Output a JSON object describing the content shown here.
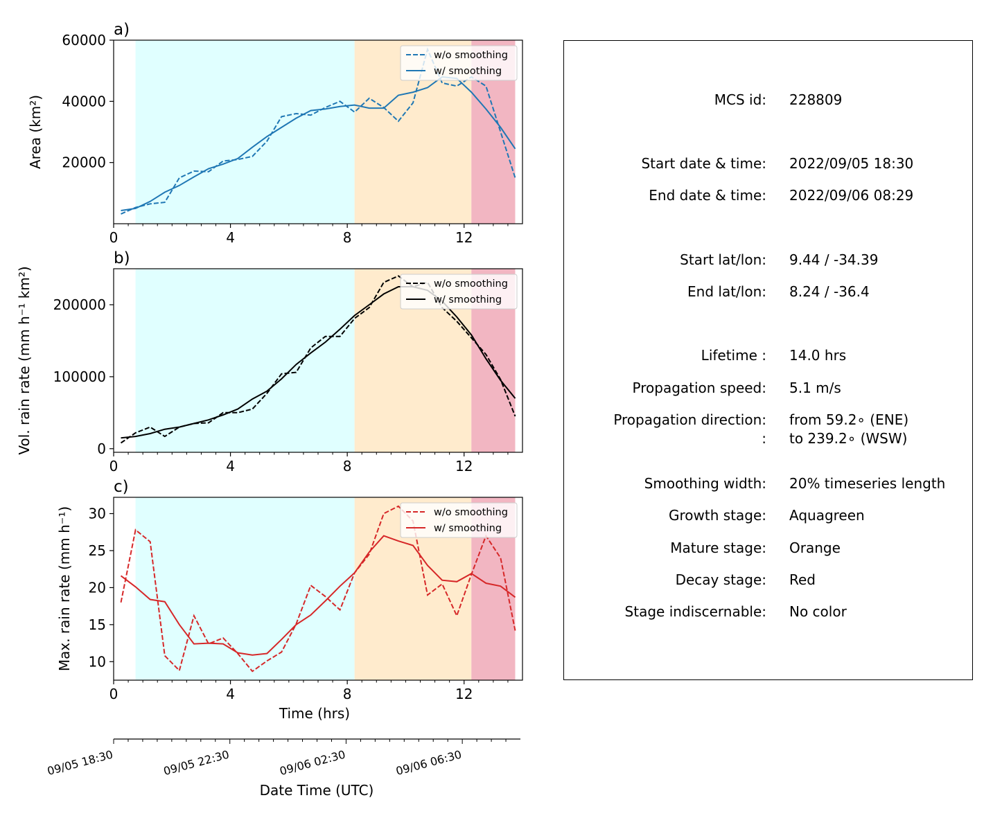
{
  "colors": {
    "growth": "#e0ffff",
    "mature": "#ffebcd",
    "decay": "#f2b6c2",
    "area": "#1f77b4",
    "volrain": "#000000",
    "maxrain": "#d62728"
  },
  "chart_data": [
    {
      "type": "line",
      "panel_label": "a)",
      "ylabel": "Area  (km²)",
      "xlim": [
        0,
        14
      ],
      "ylim": [
        0,
        60000
      ],
      "yticks": [
        20000,
        40000,
        60000
      ],
      "xticks": [
        0,
        4,
        8,
        12
      ],
      "stages": [
        {
          "name": "Aquagreen",
          "from": 0.75,
          "to": 8.25
        },
        {
          "name": "Orange",
          "from": 8.25,
          "to": 12.25
        },
        {
          "name": "Red",
          "from": 12.25,
          "to": 13.75
        }
      ],
      "series": [
        {
          "name": "w/o smoothing",
          "style": "dashed",
          "x": [
            0.25,
            0.75,
            1.25,
            1.75,
            2.25,
            2.75,
            3.25,
            3.75,
            4.25,
            4.75,
            5.25,
            5.75,
            6.25,
            6.75,
            7.25,
            7.75,
            8.25,
            8.75,
            9.25,
            9.75,
            10.25,
            10.75,
            11.25,
            11.75,
            12.25,
            12.75,
            13.25,
            13.75
          ],
          "values": [
            3200,
            5300,
            6500,
            7000,
            15000,
            17200,
            17000,
            20500,
            21000,
            22000,
            27000,
            35000,
            36000,
            35500,
            38000,
            40000,
            36500,
            41000,
            38000,
            33500,
            39500,
            57000,
            46000,
            45000,
            48000,
            45000,
            30000,
            15000
          ]
        },
        {
          "name": "w/ smoothing",
          "style": "solid",
          "x": [
            0.25,
            0.75,
            1.25,
            1.75,
            2.25,
            2.75,
            3.25,
            3.75,
            4.25,
            4.75,
            5.25,
            5.75,
            6.25,
            6.75,
            7.25,
            7.75,
            8.25,
            8.75,
            9.25,
            9.75,
            10.25,
            10.75,
            11.25,
            11.75,
            12.25,
            12.75,
            13.25,
            13.75
          ],
          "values": [
            4300,
            5000,
            7300,
            10300,
            12500,
            15300,
            18000,
            19500,
            21300,
            25000,
            28500,
            31500,
            34500,
            37000,
            37500,
            38300,
            38800,
            37800,
            37800,
            42000,
            43000,
            44500,
            48000,
            47500,
            43000,
            37500,
            31500,
            24500
          ]
        }
      ]
    },
    {
      "type": "line",
      "panel_label": "b)",
      "ylabel": "Vol. rain rate (mm h⁻¹ km²)",
      "xlim": [
        0,
        14
      ],
      "ylim": [
        -5000,
        250000
      ],
      "yticks": [
        0,
        100000,
        200000
      ],
      "xticks": [
        0,
        4,
        8,
        12
      ],
      "stages": [
        {
          "name": "Aquagreen",
          "from": 0.75,
          "to": 8.25
        },
        {
          "name": "Orange",
          "from": 8.25,
          "to": 12.25
        },
        {
          "name": "Red",
          "from": 12.25,
          "to": 13.75
        }
      ],
      "series": [
        {
          "name": "w/o smoothing",
          "style": "dashed",
          "x": [
            0.25,
            0.75,
            1.25,
            1.75,
            2.25,
            2.75,
            3.25,
            3.75,
            4.25,
            4.75,
            5.25,
            5.75,
            6.25,
            6.75,
            7.25,
            7.75,
            8.25,
            8.75,
            9.25,
            9.75,
            10.25,
            10.75,
            11.25,
            11.75,
            12.25,
            12.75,
            13.25,
            13.75
          ],
          "values": [
            8000,
            22000,
            30000,
            17000,
            30000,
            35000,
            36000,
            50000,
            50000,
            55000,
            77000,
            104000,
            106000,
            140000,
            156000,
            156000,
            181000,
            196000,
            231000,
            240000,
            225000,
            231000,
            196000,
            177000,
            154000,
            131000,
            96000,
            45000
          ]
        },
        {
          "name": "w/ smoothing",
          "style": "solid",
          "x": [
            0.25,
            0.75,
            1.25,
            1.75,
            2.25,
            2.75,
            3.25,
            3.75,
            4.25,
            4.75,
            5.25,
            5.75,
            6.25,
            6.75,
            7.25,
            7.75,
            8.25,
            8.75,
            9.25,
            9.75,
            10.25,
            10.75,
            11.25,
            11.75,
            12.25,
            12.75,
            13.25,
            13.75
          ],
          "values": [
            15000,
            17000,
            21000,
            27000,
            30000,
            35000,
            40000,
            47000,
            55000,
            69000,
            80000,
            97000,
            117000,
            133000,
            148000,
            166000,
            185000,
            200000,
            215000,
            225000,
            225000,
            220000,
            205000,
            183000,
            158000,
            125000,
            95000,
            70000
          ]
        }
      ]
    },
    {
      "type": "line",
      "panel_label": "c)",
      "ylabel": "Max. rain rate  (mm h⁻¹)",
      "xlabel": "Time (hrs)",
      "xlim": [
        0,
        14
      ],
      "ylim": [
        7.5,
        32.2
      ],
      "yticks": [
        10,
        15,
        20,
        25,
        30
      ],
      "xticks": [
        0,
        4,
        8,
        12
      ],
      "stages": [
        {
          "name": "Aquagreen",
          "from": 0.75,
          "to": 8.25
        },
        {
          "name": "Orange",
          "from": 8.25,
          "to": 12.25
        },
        {
          "name": "Red",
          "from": 12.25,
          "to": 13.75
        }
      ],
      "series": [
        {
          "name": "w/o smoothing",
          "style": "dashed",
          "x": [
            0.25,
            0.75,
            1.25,
            1.75,
            2.25,
            2.75,
            3.25,
            3.75,
            4.25,
            4.75,
            5.25,
            5.75,
            6.25,
            6.75,
            7.25,
            7.75,
            8.25,
            8.75,
            9.25,
            9.75,
            10.25,
            10.75,
            11.25,
            11.75,
            12.25,
            12.75,
            13.25,
            13.75
          ],
          "values": [
            18,
            27.8,
            26.2,
            10.8,
            8.8,
            16.2,
            12.4,
            13.2,
            11.1,
            8.7,
            10.1,
            11.3,
            15.1,
            20.3,
            18.8,
            17,
            22,
            24.5,
            30,
            31,
            29,
            19,
            20.5,
            16.2,
            21.8,
            27,
            24,
            14.2
          ]
        },
        {
          "name": "w/ smoothing",
          "style": "solid",
          "x": [
            0.25,
            0.75,
            1.25,
            1.75,
            2.25,
            2.75,
            3.25,
            3.75,
            4.25,
            4.75,
            5.25,
            5.75,
            6.25,
            6.75,
            7.25,
            7.75,
            8.25,
            8.75,
            9.25,
            9.75,
            10.25,
            10.75,
            11.25,
            11.75,
            12.25,
            12.75,
            13.25,
            13.75
          ],
          "values": [
            21.6,
            20.1,
            18.4,
            18.1,
            15,
            12.4,
            12.5,
            12.4,
            11.2,
            10.9,
            11.1,
            13,
            15,
            16.3,
            18.2,
            20.2,
            22,
            24.8,
            27,
            26.3,
            25.7,
            23,
            21,
            20.8,
            21.9,
            20.6,
            20.2,
            18.7
          ]
        }
      ]
    }
  ],
  "datetime_axis": {
    "label": "Date Time (UTC)",
    "ticks": [
      "09/05 18:30",
      "09/05 22:30",
      "09/06 02:30",
      "09/06 06:30"
    ]
  },
  "info_panel": {
    "rows": [
      {
        "label": "MCS id:",
        "value": "228809"
      },
      {
        "label": "Start date & time:",
        "value": "2022/09/05 18:30"
      },
      {
        "label": "End date & time:",
        "value": "2022/09/06 08:29"
      },
      {
        "label": "Start lat/lon:",
        "value": "9.44 / -34.39"
      },
      {
        "label": "End lat/lon:",
        "value": "8.24 / -36.4"
      },
      {
        "label": "Lifetime :",
        "value": "14.0 hrs"
      },
      {
        "label": "Propagation speed:",
        "value": "5.1 m/s"
      },
      {
        "label": "Propagation direction:",
        "value": "from  59.2∘ (ENE)"
      },
      {
        "label": ":",
        "value": "to   239.2∘ (WSW)"
      },
      {
        "label": "Smoothing width:",
        "value": "20% timeseries length"
      },
      {
        "label": "Growth stage:",
        "value": "Aquagreen"
      },
      {
        "label": "Mature stage:",
        "value": "Orange"
      },
      {
        "label": "Decay stage:",
        "value": "Red"
      },
      {
        "label": "Stage indiscernable:",
        "value": "No color"
      }
    ]
  }
}
